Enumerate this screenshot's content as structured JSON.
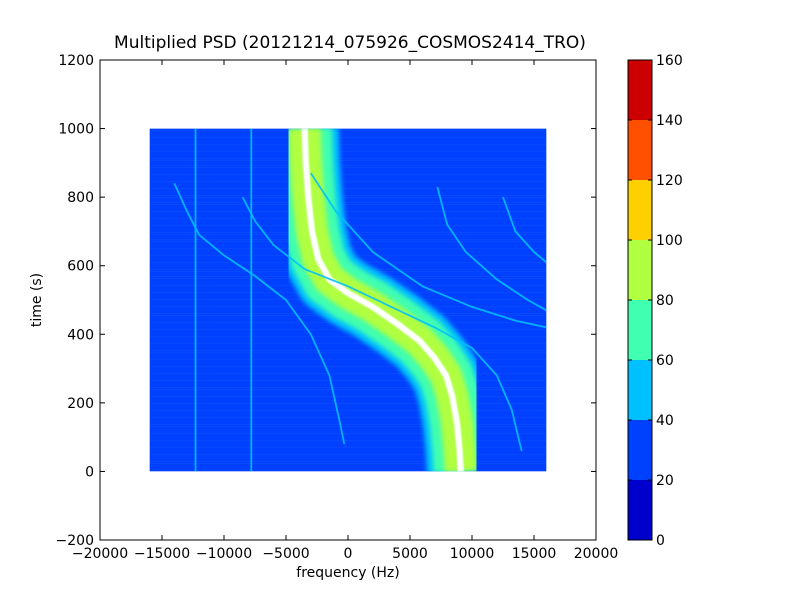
{
  "chart_data": {
    "type": "heatmap",
    "title": "Multiplied PSD (20121214_075926_COSMOS2414_TRO)",
    "xlabel": "frequency (Hz)",
    "ylabel": "time (s)",
    "xlim": [
      -20000,
      20000
    ],
    "ylim": [
      -200,
      1200
    ],
    "x_ticks": [
      -20000,
      -15000,
      -10000,
      -5000,
      0,
      5000,
      10000,
      15000,
      20000
    ],
    "y_ticks": [
      -200,
      0,
      200,
      400,
      600,
      800,
      1000,
      1200
    ],
    "x_tick_labels": [
      "−20000",
      "−15000",
      "−10000",
      "−5000",
      "0",
      "5000",
      "10000",
      "15000",
      "20000"
    ],
    "y_tick_labels": [
      "−200",
      "0",
      "200",
      "400",
      "600",
      "800",
      "1000",
      "1200"
    ],
    "data_extent": {
      "x": [
        -16000,
        16000
      ],
      "y": [
        0,
        1000
      ]
    },
    "background_level_range": [
      20,
      40
    ],
    "main_track": {
      "description_none": "",
      "points": [
        [
          -3500,
          1000
        ],
        [
          -3400,
          900
        ],
        [
          -3200,
          800
        ],
        [
          -2900,
          700
        ],
        [
          -2400,
          620
        ],
        [
          -1500,
          560
        ],
        [
          0,
          520
        ],
        [
          2000,
          480
        ],
        [
          4000,
          430
        ],
        [
          5800,
          380
        ],
        [
          7000,
          330
        ],
        [
          7900,
          280
        ],
        [
          8400,
          220
        ],
        [
          8800,
          140
        ],
        [
          9000,
          60
        ],
        [
          9100,
          0
        ]
      ],
      "band_half_width": [
        {
          "level_min": 60,
          "level_max": 80,
          "half_width_hz": 2200
        },
        {
          "level_min": 80,
          "level_max": 100,
          "half_width_hz": 1300
        },
        {
          "level_min": 100,
          "level_max": 160,
          "half_width_hz": 250
        }
      ]
    },
    "side_tracks": [
      {
        "points": [
          [
            -14000,
            840
          ],
          [
            -13000,
            760
          ],
          [
            -12000,
            690
          ],
          [
            -10000,
            630
          ],
          [
            -7500,
            570
          ],
          [
            -5000,
            500
          ],
          [
            -3000,
            400
          ],
          [
            -1500,
            280
          ],
          [
            -700,
            150
          ],
          [
            -300,
            80
          ]
        ]
      },
      {
        "points": [
          [
            -8500,
            800
          ],
          [
            -7500,
            730
          ],
          [
            -6000,
            660
          ],
          [
            -3500,
            590
          ],
          [
            0,
            540
          ],
          [
            3500,
            480
          ],
          [
            7000,
            420
          ],
          [
            10000,
            360
          ],
          [
            12000,
            280
          ],
          [
            13200,
            180
          ],
          [
            14000,
            60
          ]
        ]
      },
      {
        "points": [
          [
            -3000,
            870
          ],
          [
            -1000,
            760
          ],
          [
            2000,
            640
          ],
          [
            6000,
            540
          ],
          [
            10000,
            480
          ],
          [
            13500,
            440
          ],
          [
            16000,
            420
          ]
        ]
      },
      {
        "points": [
          [
            7200,
            830
          ],
          [
            8000,
            720
          ],
          [
            9500,
            640
          ],
          [
            12000,
            560
          ],
          [
            14500,
            500
          ],
          [
            16000,
            470
          ]
        ]
      },
      {
        "points": [
          [
            12500,
            800
          ],
          [
            13500,
            700
          ],
          [
            15000,
            640
          ],
          [
            16000,
            610
          ]
        ]
      },
      {
        "points": [
          [
            -12300,
            1000
          ],
          [
            -12300,
            0
          ]
        ]
      },
      {
        "points": [
          [
            -7800,
            1000
          ],
          [
            -7800,
            0
          ]
        ]
      }
    ],
    "colorbar": {
      "levels": [
        0,
        20,
        40,
        60,
        80,
        100,
        120,
        140,
        160
      ],
      "tick_labels": [
        "0",
        "20",
        "40",
        "60",
        "80",
        "100",
        "120",
        "140",
        "160"
      ],
      "colors": [
        "#0000cc",
        "#0040ff",
        "#00c0ff",
        "#40ffb0",
        "#b0ff40",
        "#ffd000",
        "#ff5000",
        "#cc0000"
      ]
    },
    "grid": false,
    "legend": "none"
  }
}
